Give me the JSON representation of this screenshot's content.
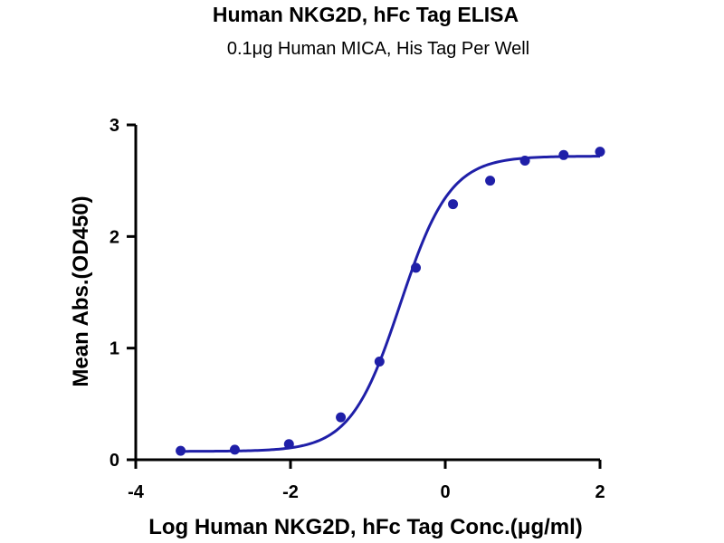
{
  "chart_data": {
    "type": "scatter",
    "title": "Human NKG2D, hFc Tag ELISA",
    "subtitle": "0.1μg Human MICA, His Tag Per Well",
    "xlabel": "Log Human NKG2D, hFc Tag Conc.(μg/ml)",
    "ylabel": "Mean Abs.(OD450)",
    "xlim": [
      -4,
      2
    ],
    "ylim": [
      0,
      3
    ],
    "xticks": [
      -4,
      -2,
      0,
      2
    ],
    "yticks": [
      0,
      1,
      2,
      3
    ],
    "xtick_labels": [
      "-4",
      "-2",
      "0",
      "2"
    ],
    "ytick_labels": [
      "0",
      "1",
      "2",
      "3"
    ],
    "grid": false,
    "series": [
      {
        "color": "#1f1fa8",
        "points": [
          {
            "x": -3.42,
            "y": 0.08
          },
          {
            "x": -2.72,
            "y": 0.09
          },
          {
            "x": -2.02,
            "y": 0.14
          },
          {
            "x": -1.35,
            "y": 0.38
          },
          {
            "x": -0.85,
            "y": 0.88
          },
          {
            "x": -0.38,
            "y": 1.72
          },
          {
            "x": 0.1,
            "y": 2.29
          },
          {
            "x": 0.58,
            "y": 2.5
          },
          {
            "x": 1.03,
            "y": 2.68
          },
          {
            "x": 1.53,
            "y": 2.73
          },
          {
            "x": 2.0,
            "y": 2.76
          }
        ],
        "fit": {
          "model": "4PL",
          "bottom": 0.075,
          "top": 2.72,
          "logEC50": -0.58,
          "hill": 1.35
        }
      }
    ]
  }
}
